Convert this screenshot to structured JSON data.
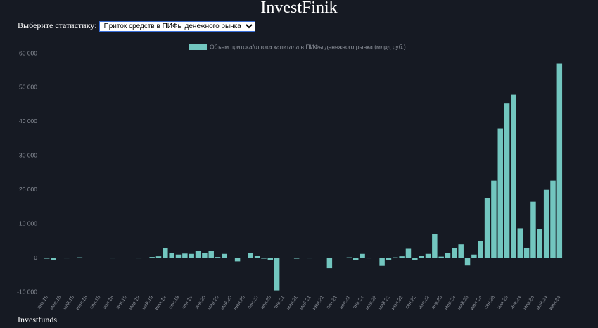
{
  "header": {
    "title": "InvestFinik"
  },
  "controls": {
    "label": "Выберите статистику:",
    "selected": "Приток средств в ПИФы денежного рынка"
  },
  "footer": {
    "text": "Investfunds"
  },
  "chart_data": {
    "type": "bar",
    "categories": [
      "янв.18",
      null,
      "мар.18",
      null,
      "май.18",
      null,
      "июл.18",
      null,
      "сен.18",
      null,
      "ноя.18",
      null,
      "янв.19",
      null,
      "мар.19",
      null,
      "май.19",
      null,
      "июл.19",
      null,
      "сен.19",
      null,
      "ноя.19",
      null,
      "янв.20",
      null,
      "мар.20",
      null,
      "май.20",
      null,
      "июл.20",
      null,
      "сен.20",
      null,
      "ноя.20",
      null,
      "янв.21",
      null,
      "мар.21",
      null,
      "май.21",
      null,
      "июл.21",
      null,
      "сен.21",
      null,
      "ноя.21",
      null,
      "янв.22",
      null,
      "мар.22",
      null,
      "май.22",
      null,
      "июл.22",
      null,
      "сен.22",
      null,
      "ноя.22",
      null,
      "янв.23",
      null,
      "мар.23",
      null,
      "май.23",
      null,
      "июл.23",
      null,
      "сен.23",
      null,
      "ноя.23",
      null,
      "янв.24",
      null,
      "мар.24",
      null,
      "май.24",
      null,
      "июл.24"
    ],
    "series": [
      {
        "name": "Объем притока/оттока капитала в ПИФы денежного рынка (млрд руб.)",
        "color": "#72c6bf",
        "values": [
          -200,
          -500,
          100,
          -100,
          100,
          200,
          50,
          -50,
          100,
          50,
          -100,
          100,
          50,
          100,
          -100,
          50,
          300,
          500,
          3000,
          1500,
          1000,
          1300,
          1200,
          2000,
          1500,
          2000,
          300,
          1200,
          100,
          -1000,
          100,
          1400,
          600,
          -200,
          -500,
          -9500,
          100,
          50,
          -200,
          50,
          -100,
          50,
          100,
          -3000,
          50,
          100,
          200,
          -600,
          1200,
          -100,
          100,
          -2300,
          -500,
          200,
          500,
          2700,
          -700,
          700,
          1200,
          7000,
          400,
          1500,
          3000,
          4000,
          -2200,
          1000,
          5000,
          17500,
          22700,
          38000,
          45300,
          47900,
          8700,
          3000,
          16500,
          8500,
          20000,
          22700,
          57000
        ]
      }
    ],
    "ylim": [
      -10000,
      60000
    ],
    "yticks": [
      {
        "value": -10000,
        "label": "-10 000"
      },
      0,
      {
        "value": 10000,
        "label": "10 000"
      },
      {
        "value": 20000,
        "label": "20 000"
      },
      {
        "value": 30000,
        "label": "30 000"
      },
      {
        "value": 40000,
        "label": "40 000"
      },
      {
        "value": 50000,
        "label": "50 000"
      },
      {
        "value": 60000,
        "label": "60 000"
      }
    ],
    "grid": false,
    "legend": "top"
  }
}
